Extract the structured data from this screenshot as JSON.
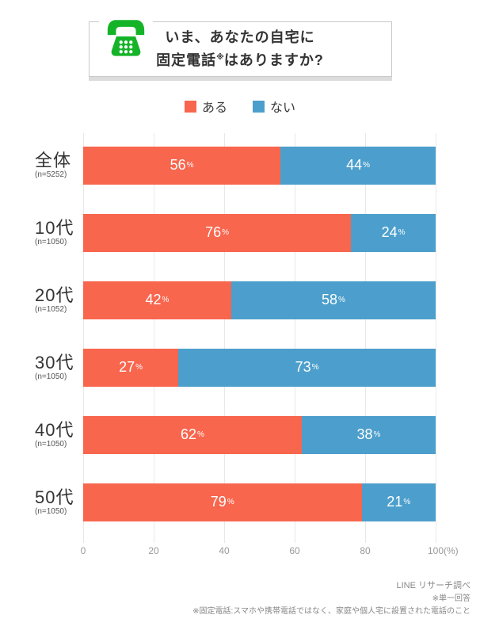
{
  "header": {
    "title_line1": "いま、あなたの自宅に",
    "title_line2_pre": "固定電話",
    "title_line2_ref": "※",
    "title_line2_post": "はありますか?"
  },
  "legend": [
    {
      "label": "ある",
      "color": "#F8664E"
    },
    {
      "label": "ない",
      "color": "#4C9FCC"
    }
  ],
  "chart_data": {
    "type": "bar",
    "stacked": true,
    "orientation": "horizontal",
    "title": "いま、あなたの自宅に固定電話※はありますか?",
    "categories": [
      "全体",
      "10代",
      "20代",
      "30代",
      "40代",
      "50代"
    ],
    "sample_sizes": [
      "(n=5252)",
      "(n=1050)",
      "(n=1052)",
      "(n=1050)",
      "(n=1050)",
      "(n=1050)"
    ],
    "series": [
      {
        "name": "ある",
        "color": "#F8664E",
        "values": [
          56,
          76,
          42,
          27,
          62,
          79
        ]
      },
      {
        "name": "ない",
        "color": "#4C9FCC",
        "values": [
          44,
          24,
          58,
          73,
          38,
          21
        ]
      }
    ],
    "value_suffix": "%",
    "x_ticks": [
      0,
      20,
      40,
      60,
      80,
      100
    ],
    "x_unit": "(%)",
    "xlim": [
      0,
      100
    ],
    "grid": true,
    "legend_position": "top"
  },
  "icons": {
    "phone": {
      "name": "phone-icon",
      "color": "#15B428"
    }
  },
  "footer": {
    "source": "LINE リサーチ調べ",
    "note1": "※単一回答",
    "note2": "※固定電話:スマホや携帯電話ではなく、家庭や個人宅に設置された電話のこと"
  }
}
